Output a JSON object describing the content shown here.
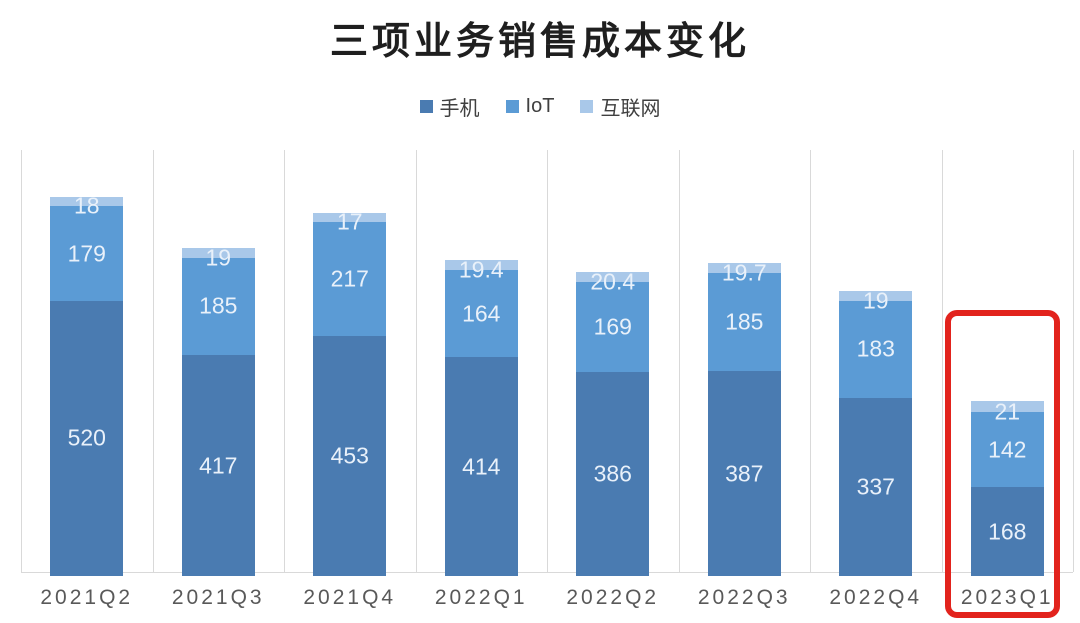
{
  "title": "三项业务销售成本变化",
  "legend": {
    "items": [
      {
        "key": "phone",
        "label": "手机",
        "color": "#4a7bb1"
      },
      {
        "key": "iot",
        "label": "IoT",
        "color": "#5b9bd5"
      },
      {
        "key": "internet",
        "label": "互联网",
        "color": "#a9c8e9"
      }
    ]
  },
  "chart_data": {
    "type": "bar",
    "stacked": true,
    "title": "三项业务销售成本变化",
    "categories": [
      "2021Q2",
      "2021Q3",
      "2021Q4",
      "2022Q1",
      "2022Q2",
      "2022Q3",
      "2022Q4",
      "2023Q1"
    ],
    "series": [
      {
        "name": "手机",
        "key": "phone",
        "color": "#4a7bb1",
        "values": [
          520,
          417,
          453,
          414,
          386,
          387,
          337,
          168
        ]
      },
      {
        "name": "IoT",
        "key": "iot",
        "color": "#5b9bd5",
        "values": [
          179,
          185,
          217,
          164,
          169,
          185,
          183,
          142
        ]
      },
      {
        "name": "互联网",
        "key": "internet",
        "color": "#a9c8e9",
        "values": [
          18,
          19,
          17,
          19.4,
          20.4,
          19.7,
          19,
          21
        ]
      }
    ],
    "data_labels": true,
    "xlabel": "",
    "ylabel": "",
    "ylim": [
      0,
      806
    ],
    "grid": "vertical-category-separators",
    "legend_position": "top",
    "highlight": {
      "category": "2023Q1",
      "shape": "rounded-rect",
      "color": "#e2231d"
    }
  },
  "colors": {
    "background": "#ffffff",
    "title_text": "#1f1f1f",
    "legend_text": "#404040",
    "bar_label_text": "#e9f1fa",
    "axis_text": "#595959",
    "gridline": "#d9d9d9",
    "highlight": "#e2231d"
  }
}
